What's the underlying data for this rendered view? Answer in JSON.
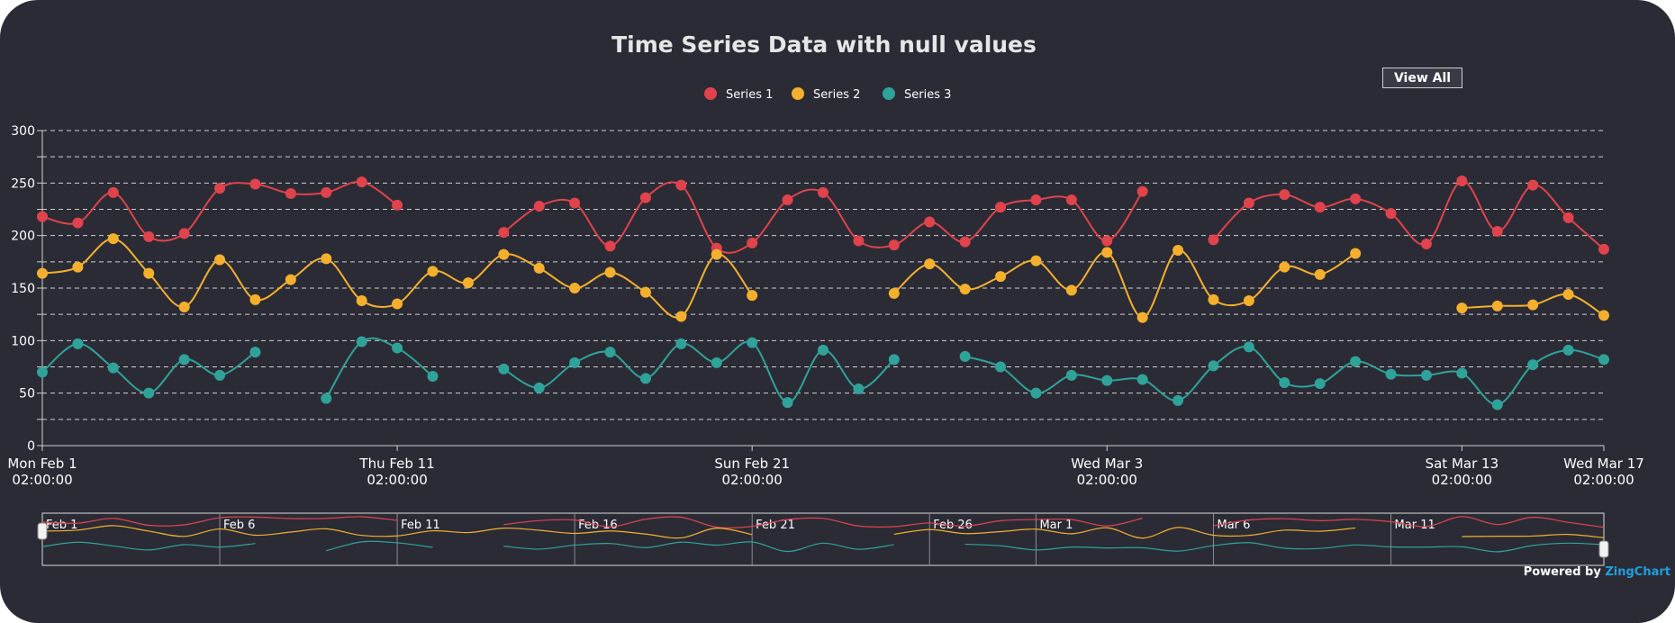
{
  "chart_data": {
    "type": "line",
    "title": "Time Series Data with null values",
    "legend": {
      "position": "top-center"
    },
    "ylim": [
      0,
      300
    ],
    "yticks": [
      0,
      50,
      100,
      150,
      200,
      250,
      300
    ],
    "grid": true,
    "x_start": "Mon Feb 1",
    "x_end": "Wed Mar 17",
    "x_ticks": [
      {
        "index": 0,
        "day": "Mon Feb 1",
        "time": "02:00:00"
      },
      {
        "index": 10,
        "day": "Thu Feb 11",
        "time": "02:00:00"
      },
      {
        "index": 20,
        "day": "Sun Feb 21",
        "time": "02:00:00"
      },
      {
        "index": 30,
        "day": "Wed Mar 3",
        "time": "02:00:00"
      },
      {
        "index": 40,
        "day": "Sat Mar 13",
        "time": "02:00:00"
      },
      {
        "index": 44,
        "day": "Wed Mar 17",
        "time": "02:00:00"
      }
    ],
    "series": [
      {
        "name": "Series 1",
        "color": "#e0434b",
        "values": [
          218,
          212,
          241,
          199,
          202,
          245,
          249,
          240,
          241,
          251,
          229,
          null,
          null,
          203,
          228,
          231,
          190,
          236,
          248,
          188,
          193,
          234,
          241,
          195,
          191,
          213,
          194,
          227,
          234,
          234,
          195,
          242,
          null,
          196,
          231,
          239,
          227,
          235,
          221,
          192,
          252,
          204,
          248,
          217,
          187
        ]
      },
      {
        "name": "Series 2",
        "color": "#f4b02c",
        "values": [
          164,
          170,
          197,
          164,
          132,
          177,
          139,
          158,
          178,
          138,
          135,
          166,
          155,
          182,
          169,
          150,
          165,
          146,
          123,
          182,
          143,
          null,
          null,
          null,
          145,
          173,
          149,
          161,
          176,
          148,
          184,
          122,
          186,
          139,
          138,
          170,
          163,
          183,
          null,
          null,
          131,
          133,
          134,
          144,
          124
        ]
      },
      {
        "name": "Series 3",
        "color": "#2fa399",
        "values": [
          70,
          97,
          74,
          50,
          82,
          67,
          89,
          null,
          45,
          99,
          93,
          66,
          null,
          73,
          55,
          79,
          89,
          64,
          97,
          79,
          98,
          41,
          91,
          54,
          82,
          null,
          85,
          75,
          50,
          67,
          62,
          63,
          43,
          76,
          94,
          60,
          59,
          80,
          68,
          67,
          69,
          39,
          77,
          91,
          82
        ]
      }
    ],
    "preview": {
      "labels": [
        "Feb 1",
        "Feb 6",
        "Feb 11",
        "Feb 16",
        "Feb 21",
        "Feb 26",
        "Mar 1",
        "Mar 6",
        "Mar 11"
      ]
    }
  },
  "controls": {
    "view_all": "View All"
  },
  "credit": {
    "prefix": "Powered by ",
    "brand": "ZingChart"
  }
}
